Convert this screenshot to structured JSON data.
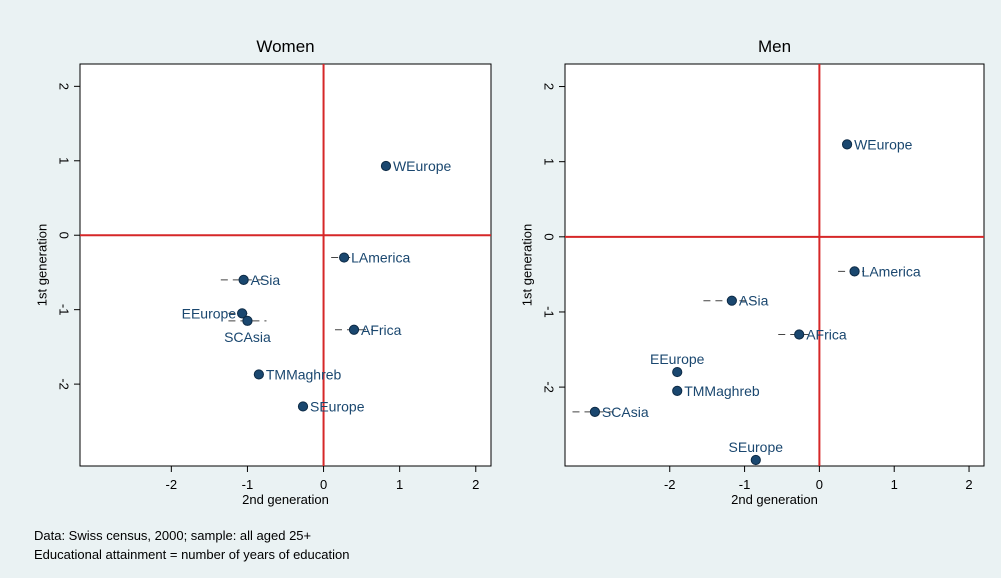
{
  "figure": {
    "note_line1": "Data: Swiss census, 2000; sample: all aged 25+",
    "note_line2": "Educational attainment = number of years of education"
  },
  "colors": {
    "background": "#eaf2f3",
    "plot_background": "#ffffff",
    "reference_line": "#d62728",
    "marker": "#1a476f",
    "label": "#1a476f",
    "ci_line": "#444444"
  },
  "chart_data": [
    {
      "type": "scatter",
      "title": "Women",
      "xlabel": "2nd generation",
      "ylabel": "1st generation",
      "xlim": [
        -3.2,
        2.2
      ],
      "ylim": [
        -3.1,
        2.3
      ],
      "xticks": [
        -2,
        -1,
        0,
        1,
        2
      ],
      "yticks": [
        -2,
        -1,
        0,
        1,
        2
      ],
      "xtick_labels": [
        "-2",
        "-1",
        "0",
        "1",
        "2"
      ],
      "ytick_labels": [
        "-2",
        "-1",
        "0",
        "1",
        "2"
      ],
      "grid": false,
      "reference_lines": {
        "x": 0,
        "y": 0
      },
      "points": [
        {
          "label": "WEurope",
          "x": 0.82,
          "y": 0.93,
          "ci": [
            0.82,
            0.82
          ],
          "label_pos": "right"
        },
        {
          "label": "LAmerica",
          "x": 0.27,
          "y": -0.3,
          "ci": [
            0.1,
            0.4
          ],
          "label_pos": "right"
        },
        {
          "label": "ASia",
          "x": -1.05,
          "y": -0.6,
          "ci": [
            -1.35,
            -0.8
          ],
          "label_pos": "right"
        },
        {
          "label": "EEurope",
          "x": -1.07,
          "y": -1.05,
          "ci": [
            -1.25,
            -0.95
          ],
          "label_pos": "left"
        },
        {
          "label": "SCAsia",
          "x": -1.0,
          "y": -1.15,
          "ci": [
            -1.25,
            -0.75
          ],
          "label_pos": "below"
        },
        {
          "label": "AFrica",
          "x": 0.4,
          "y": -1.27,
          "ci": [
            0.15,
            0.65
          ],
          "label_pos": "right"
        },
        {
          "label": "TMMaghreb",
          "x": -0.85,
          "y": -1.87,
          "ci": [
            -0.85,
            -0.85
          ],
          "label_pos": "right"
        },
        {
          "label": "SEurope",
          "x": -0.27,
          "y": -2.3,
          "ci": [
            -0.27,
            -0.27
          ],
          "label_pos": "right"
        }
      ]
    },
    {
      "type": "scatter",
      "title": "Men",
      "xlabel": "2nd generation",
      "ylabel": "1st generation",
      "xlim": [
        -3.4,
        2.2
      ],
      "ylim": [
        -3.05,
        2.3
      ],
      "xticks": [
        -2,
        -1,
        0,
        1,
        2
      ],
      "yticks": [
        -2,
        -1,
        0,
        1,
        2
      ],
      "xtick_labels": [
        "-2",
        "-1",
        "0",
        "1",
        "2"
      ],
      "ytick_labels": [
        "-2",
        "-1",
        "0",
        "1",
        "2"
      ],
      "grid": false,
      "reference_lines": {
        "x": 0,
        "y": 0
      },
      "points": [
        {
          "label": "WEurope",
          "x": 0.37,
          "y": 1.23,
          "ci": [
            0.37,
            0.37
          ],
          "label_pos": "right"
        },
        {
          "label": "LAmerica",
          "x": 0.47,
          "y": -0.46,
          "ci": [
            0.25,
            0.6
          ],
          "label_pos": "right"
        },
        {
          "label": "ASia",
          "x": -1.17,
          "y": -0.85,
          "ci": [
            -1.55,
            -0.85
          ],
          "label_pos": "right"
        },
        {
          "label": "AFrica",
          "x": -0.27,
          "y": -1.3,
          "ci": [
            -0.55,
            -0.1
          ],
          "label_pos": "right"
        },
        {
          "label": "EEurope",
          "x": -1.9,
          "y": -1.8,
          "ci": [
            -1.9,
            -1.9
          ],
          "label_pos": "above"
        },
        {
          "label": "TMMaghreb",
          "x": -1.9,
          "y": -2.05,
          "ci": [
            -1.9,
            -1.9
          ],
          "label_pos": "right"
        },
        {
          "label": "SCAsia",
          "x": -3.0,
          "y": -2.33,
          "ci": [
            -3.3,
            -2.75
          ],
          "label_pos": "right"
        },
        {
          "label": "SEurope",
          "x": -0.85,
          "y": -2.97,
          "ci": [
            -0.85,
            -0.85
          ],
          "label_pos": "above"
        }
      ]
    }
  ]
}
